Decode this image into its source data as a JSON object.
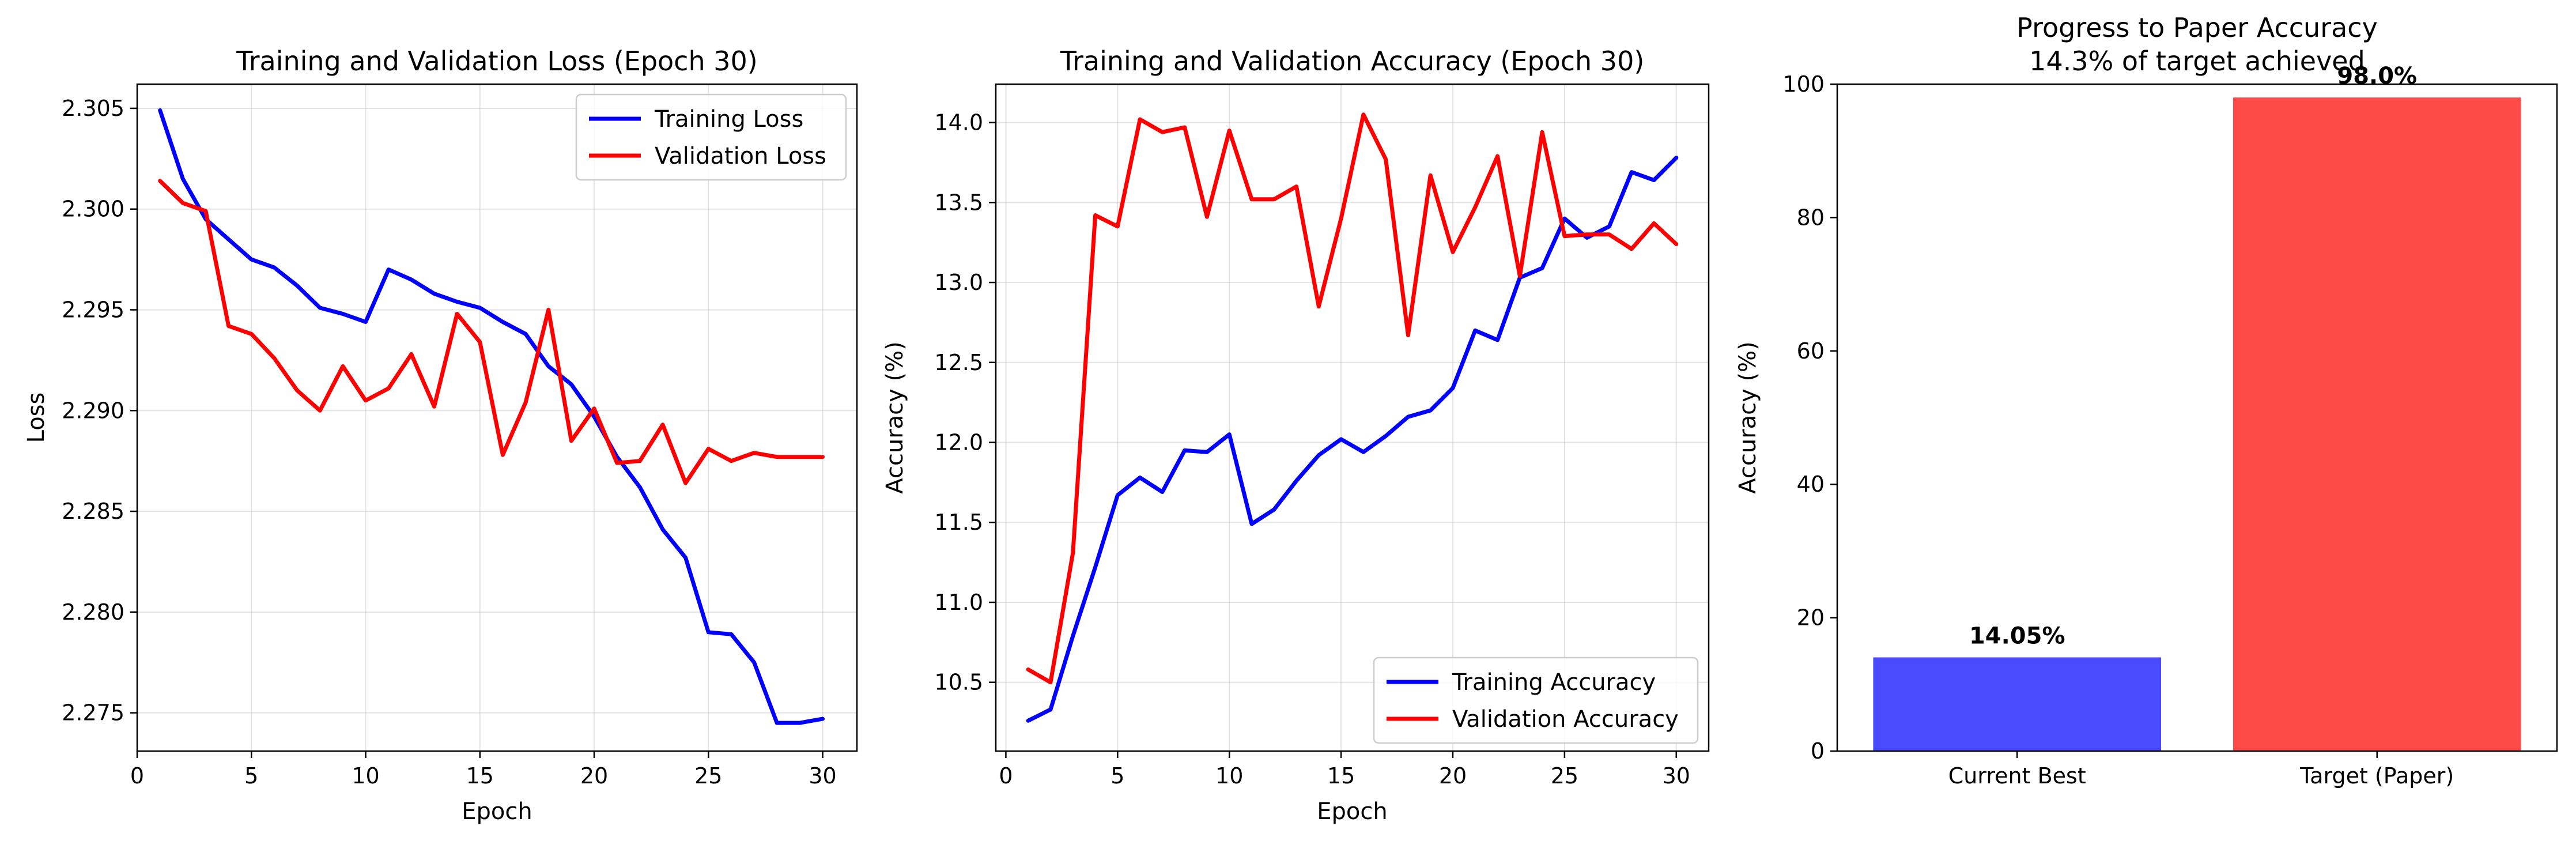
{
  "chart_data": [
    {
      "type": "line",
      "title": "Training and Validation Loss (Epoch 30)",
      "xlabel": "Epoch",
      "ylabel": "Loss",
      "xlim": [
        0,
        31.5
      ],
      "ylim": [
        2.2731,
        2.3062
      ],
      "xticks": [
        0,
        5,
        10,
        15,
        20,
        25,
        30
      ],
      "xtick_labels": [
        "0",
        "5",
        "10",
        "15",
        "20",
        "25",
        "30"
      ],
      "yticks": [
        2.275,
        2.28,
        2.285,
        2.29,
        2.295,
        2.3,
        2.305
      ],
      "ytick_labels": [
        "2.275",
        "2.280",
        "2.285",
        "2.290",
        "2.295",
        "2.300",
        "2.305"
      ],
      "grid": true,
      "legend": "top-right",
      "x": [
        1,
        2,
        3,
        4,
        5,
        6,
        7,
        8,
        9,
        10,
        11,
        12,
        13,
        14,
        15,
        16,
        17,
        18,
        19,
        20,
        21,
        22,
        23,
        24,
        25,
        26,
        27,
        28,
        29,
        30
      ],
      "series": [
        {
          "name": "Training Loss",
          "color": "#0000ff",
          "values": [
            2.3049,
            2.3015,
            2.2995,
            2.2985,
            2.2975,
            2.2971,
            2.2962,
            2.2951,
            2.2948,
            2.2944,
            2.297,
            2.2965,
            2.2958,
            2.2954,
            2.2951,
            2.2944,
            2.2938,
            2.2922,
            2.2913,
            2.2897,
            2.2877,
            2.2862,
            2.2841,
            2.2827,
            2.279,
            2.2789,
            2.2775,
            2.2745,
            2.2745,
            2.2747
          ]
        },
        {
          "name": "Validation Loss",
          "color": "#ff0000",
          "values": [
            2.3014,
            2.3003,
            2.2999,
            2.2942,
            2.2938,
            2.2926,
            2.291,
            2.29,
            2.2922,
            2.2905,
            2.2911,
            2.2928,
            2.2902,
            2.2948,
            2.2934,
            2.2878,
            2.2904,
            2.295,
            2.2885,
            2.2901,
            2.2874,
            2.2875,
            2.2893,
            2.2864,
            2.2881,
            2.2875,
            2.2879,
            2.2877,
            2.2877,
            2.2877
          ]
        }
      ]
    },
    {
      "type": "line",
      "title": "Training and Validation Accuracy (Epoch 30)",
      "xlabel": "Epoch",
      "ylabel": "Accuracy (%)",
      "xlim": [
        -0.45,
        31.45
      ],
      "ylim": [
        10.07,
        14.24
      ],
      "xticks": [
        0,
        5,
        10,
        15,
        20,
        25,
        30
      ],
      "xtick_labels": [
        "0",
        "5",
        "10",
        "15",
        "20",
        "25",
        "30"
      ],
      "yticks": [
        10.5,
        11.0,
        11.5,
        12.0,
        12.5,
        13.0,
        13.5,
        14.0
      ],
      "ytick_labels": [
        "10.5",
        "11.0",
        "11.5",
        "12.0",
        "12.5",
        "13.0",
        "13.5",
        "14.0"
      ],
      "grid": true,
      "legend": "bottom-right",
      "x": [
        1,
        2,
        3,
        4,
        5,
        6,
        7,
        8,
        9,
        10,
        11,
        12,
        13,
        14,
        15,
        16,
        17,
        18,
        19,
        20,
        21,
        22,
        23,
        24,
        25,
        26,
        27,
        28,
        29,
        30
      ],
      "series": [
        {
          "name": "Training Accuracy",
          "color": "#0000ff",
          "values": [
            10.26,
            10.33,
            10.79,
            11.22,
            11.67,
            11.78,
            11.69,
            11.95,
            11.94,
            12.05,
            11.49,
            11.58,
            11.76,
            11.92,
            12.02,
            11.94,
            12.04,
            12.16,
            12.2,
            12.34,
            12.7,
            12.64,
            13.03,
            13.09,
            13.4,
            13.28,
            13.35,
            13.69,
            13.64,
            13.78
          ]
        },
        {
          "name": "Validation Accuracy",
          "color": "#ff0000",
          "values": [
            10.58,
            10.5,
            11.31,
            13.42,
            13.35,
            14.02,
            13.94,
            13.97,
            13.41,
            13.95,
            13.52,
            13.52,
            13.6,
            12.85,
            13.4,
            14.05,
            13.77,
            12.67,
            13.67,
            13.19,
            13.47,
            13.79,
            13.04,
            13.94,
            13.29,
            13.3,
            13.3,
            13.21,
            13.37,
            13.24
          ]
        }
      ]
    },
    {
      "type": "bar",
      "title": "Progress to Paper Accuracy",
      "subtitle": "14.3% of target achieved",
      "xlabel": "",
      "ylabel": "Accuracy (%)",
      "ylim": [
        0,
        100
      ],
      "yticks": [
        0,
        20,
        40,
        60,
        80,
        100
      ],
      "ytick_labels": [
        "0",
        "20",
        "40",
        "60",
        "80",
        "100"
      ],
      "grid": false,
      "categories": [
        "Current Best",
        "Target (Paper)"
      ],
      "values": [
        14.05,
        98.0
      ],
      "value_labels": [
        "14.05%",
        "98.0%"
      ],
      "colors": [
        "#4a4aff",
        "#ff4a4a"
      ]
    }
  ]
}
